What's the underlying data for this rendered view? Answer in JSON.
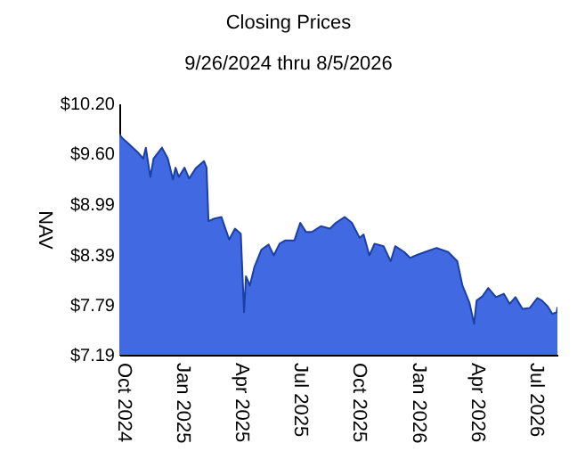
{
  "chart_data": {
    "type": "area",
    "title": "Closing Prices",
    "subtitle": "9/26/2024 thru 8/5/2026",
    "ylabel": "NAV",
    "x": [
      "2024-09-26",
      "2024-10-01",
      "2024-10-10",
      "2024-10-25",
      "2024-11-02",
      "2024-11-06",
      "2024-11-13",
      "2024-11-18",
      "2024-12-01",
      "2024-12-10",
      "2024-12-18",
      "2024-12-22",
      "2024-12-27",
      "2025-01-05",
      "2025-01-12",
      "2025-01-23",
      "2025-02-04",
      "2025-02-08",
      "2025-02-11",
      "2025-02-20",
      "2025-03-03",
      "2025-03-15",
      "2025-03-24",
      "2025-04-02",
      "2025-04-07",
      "2025-04-10",
      "2025-04-16",
      "2025-04-23",
      "2025-05-04",
      "2025-05-15",
      "2025-05-23",
      "2025-06-01",
      "2025-06-10",
      "2025-06-24",
      "2025-07-03",
      "2025-07-12",
      "2025-07-21",
      "2025-08-04",
      "2025-08-18",
      "2025-08-27",
      "2025-09-10",
      "2025-09-21",
      "2025-10-03",
      "2025-10-09",
      "2025-10-18",
      "2025-10-26",
      "2025-11-09",
      "2025-11-20",
      "2025-11-27",
      "2025-12-11",
      "2025-12-20",
      "2025-12-29",
      "2026-01-12",
      "2026-01-30",
      "2026-02-17",
      "2026-03-03",
      "2026-03-11",
      "2026-03-22",
      "2026-03-29",
      "2026-04-02",
      "2026-04-11",
      "2026-04-20",
      "2026-05-02",
      "2026-05-14",
      "2026-05-23",
      "2026-06-01",
      "2026-06-12",
      "2026-06-23",
      "2026-07-05",
      "2026-07-12",
      "2026-07-21",
      "2026-07-28",
      "2026-08-04",
      "2026-08-05"
    ],
    "series": [
      {
        "color": "#4169e1",
        "values": [
          9.83,
          9.78,
          9.72,
          9.61,
          9.54,
          9.67,
          9.32,
          9.54,
          9.67,
          9.54,
          9.29,
          9.43,
          9.32,
          9.43,
          9.3,
          9.43,
          9.51,
          9.43,
          8.79,
          8.82,
          8.84,
          8.57,
          8.7,
          8.64,
          7.7,
          8.13,
          8.02,
          8.24,
          8.45,
          8.51,
          8.38,
          8.52,
          8.56,
          8.56,
          8.77,
          8.66,
          8.66,
          8.73,
          8.7,
          8.77,
          8.84,
          8.77,
          8.59,
          8.63,
          8.38,
          8.52,
          8.49,
          8.31,
          8.49,
          8.42,
          8.35,
          8.38,
          8.42,
          8.47,
          8.42,
          8.31,
          8.02,
          7.81,
          7.56,
          7.84,
          7.89,
          7.99,
          7.88,
          7.92,
          7.8,
          7.88,
          7.74,
          7.75,
          7.87,
          7.84,
          7.77,
          7.68,
          7.7,
          7.76
        ]
      }
    ],
    "xlim": [
      "2024-09-26",
      "2026-08-05"
    ],
    "xticks": [
      {
        "value": "2024-10-01",
        "label": "Oct 2024"
      },
      {
        "value": "2025-01-01",
        "label": "Jan 2025"
      },
      {
        "value": "2025-04-01",
        "label": "Apr 2025"
      },
      {
        "value": "2025-07-01",
        "label": "Jul 2025"
      },
      {
        "value": "2025-10-01",
        "label": "Oct 2025"
      },
      {
        "value": "2026-01-01",
        "label": "Jan 2026"
      },
      {
        "value": "2026-04-01",
        "label": "Apr 2026"
      },
      {
        "value": "2026-07-01",
        "label": "Jul 2026"
      }
    ],
    "ylim": [
      7.19,
      10.2
    ],
    "yticks": [
      {
        "value": 7.19,
        "label": "$7.19"
      },
      {
        "value": 7.79,
        "label": "$7.79"
      },
      {
        "value": 8.39,
        "label": "$8.39"
      },
      {
        "value": 8.99,
        "label": "$8.99"
      },
      {
        "value": 9.6,
        "label": "$9.60"
      },
      {
        "value": 10.2,
        "label": "$10.20"
      }
    ],
    "grid": false
  }
}
